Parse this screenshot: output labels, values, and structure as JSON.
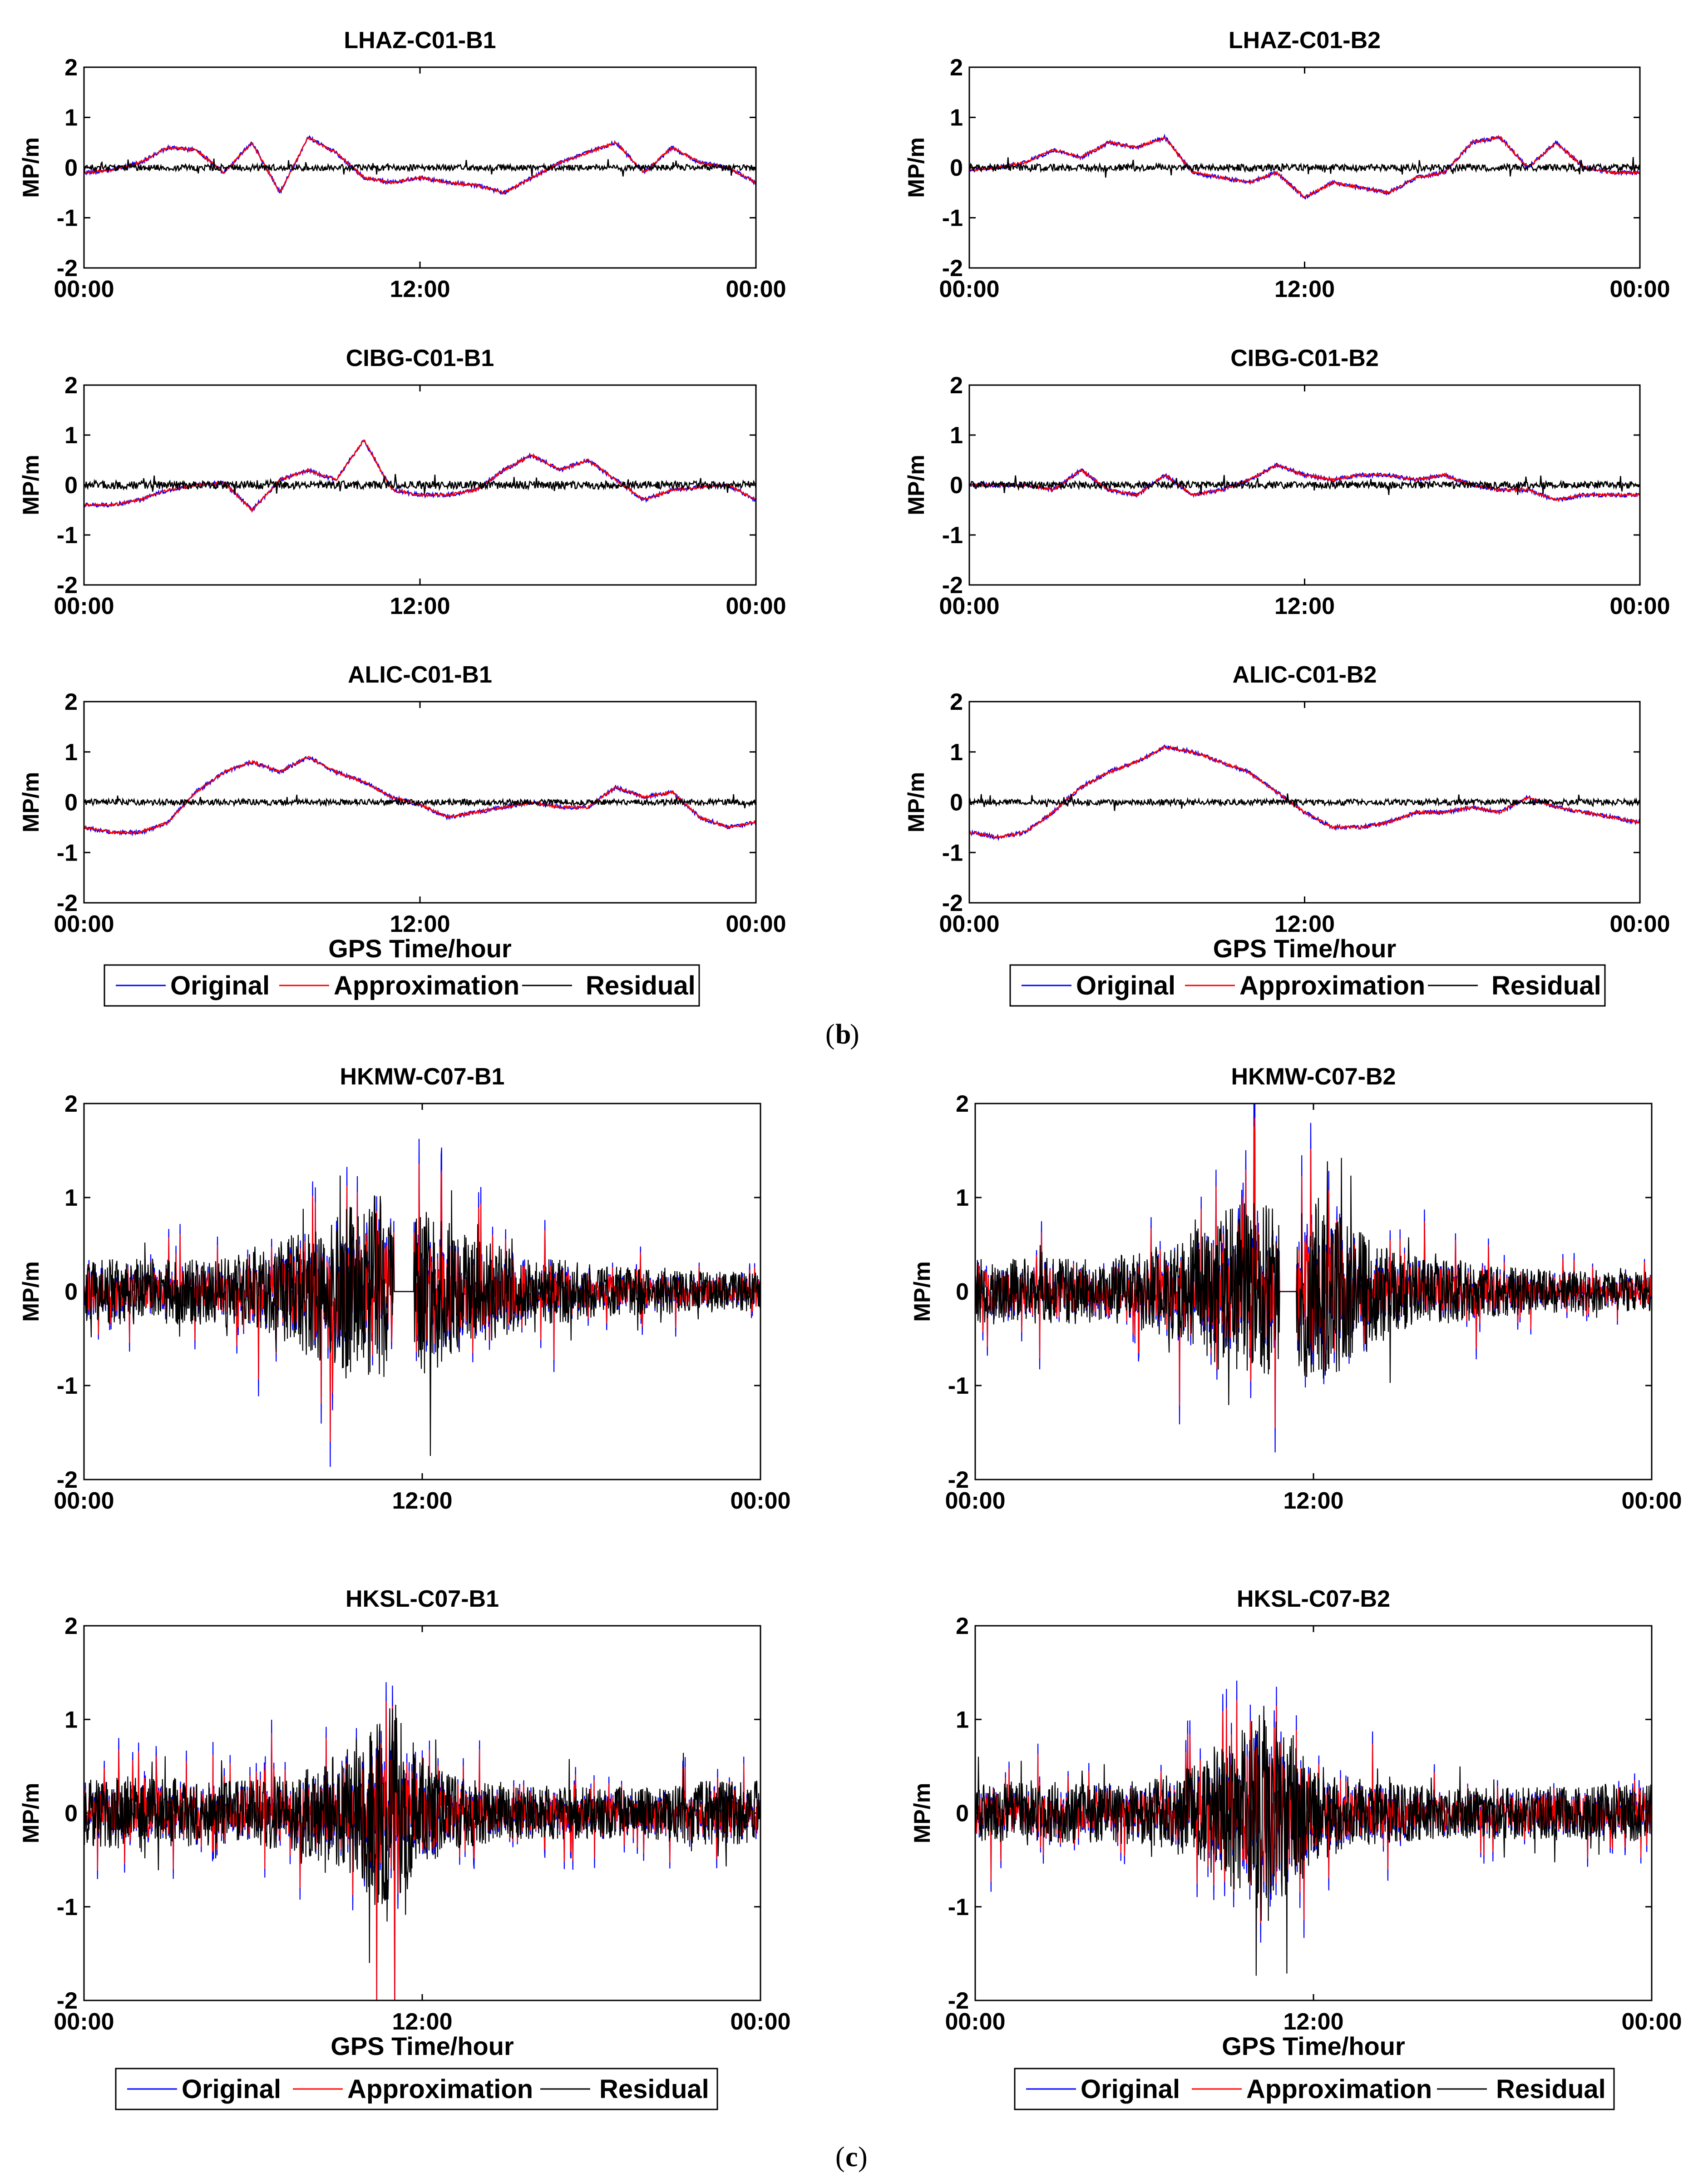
{
  "colors": {
    "original": "#0000ff",
    "approximation": "#ff0000",
    "residual": "#000000"
  },
  "legend": {
    "original": "Original",
    "approximation": "Approximation",
    "residual": "Residual"
  },
  "panel_labels": {
    "b": "b",
    "c": "c"
  },
  "chart_data": [
    {
      "type": "line",
      "title": "LHAZ-C01-B1",
      "ylabel": "MP/m",
      "xlabel": "",
      "ylim": [
        -2,
        2
      ],
      "yticks": [
        "2",
        "1",
        "0",
        "-1",
        "-2"
      ],
      "xticks": [
        "00:00",
        "12:00",
        "00:00"
      ],
      "x_range_hours": [
        0,
        24
      ],
      "noise": "low",
      "residual_amplitude": 0.06,
      "original_series": {
        "name": "Original",
        "x": [
          0,
          1,
          2,
          3,
          4,
          5,
          6,
          7,
          8,
          9,
          10,
          11,
          12,
          13,
          14,
          15,
          16,
          17,
          18,
          19,
          20,
          21,
          22,
          23,
          24
        ],
        "values": [
          -0.1,
          -0.05,
          0.1,
          0.4,
          0.35,
          -0.1,
          0.5,
          -0.5,
          0.6,
          0.3,
          -0.2,
          -0.3,
          -0.2,
          -0.3,
          -0.35,
          -0.5,
          -0.2,
          0.1,
          0.3,
          0.5,
          -0.1,
          0.4,
          0.1,
          0,
          -0.3
        ]
      }
    },
    {
      "type": "line",
      "title": "LHAZ-C01-B2",
      "ylabel": "MP/m",
      "xlabel": "",
      "ylim": [
        -2,
        2
      ],
      "yticks": [
        "2",
        "1",
        "0",
        "-1",
        "-2"
      ],
      "xticks": [
        "00:00",
        "12:00",
        "00:00"
      ],
      "x_range_hours": [
        0,
        24
      ],
      "noise": "low",
      "residual_amplitude": 0.07,
      "original_series": {
        "name": "Original",
        "x": [
          0,
          1,
          2,
          3,
          4,
          5,
          6,
          7,
          8,
          9,
          10,
          11,
          12,
          13,
          14,
          15,
          16,
          17,
          18,
          19,
          20,
          21,
          22,
          23,
          24
        ],
        "values": [
          -0.05,
          0,
          0.1,
          0.35,
          0.2,
          0.5,
          0.4,
          0.6,
          -0.1,
          -0.2,
          -0.3,
          -0.1,
          -0.6,
          -0.3,
          -0.4,
          -0.5,
          -0.2,
          -0.1,
          0.5,
          0.6,
          0,
          0.5,
          0,
          -0.1,
          -0.1
        ]
      }
    },
    {
      "type": "line",
      "title": "CIBG-C01-B1",
      "ylabel": "MP/m",
      "xlabel": "",
      "ylim": [
        -2,
        2
      ],
      "yticks": [
        "2",
        "1",
        "0",
        "-1",
        "-2"
      ],
      "xticks": [
        "00:00",
        "12:00",
        "00:00"
      ],
      "x_range_hours": [
        0,
        24
      ],
      "noise": "low",
      "residual_amplitude": 0.08,
      "original_series": {
        "name": "Original",
        "x": [
          0,
          1,
          2,
          3,
          4,
          5,
          6,
          7,
          8,
          9,
          10,
          11,
          12,
          13,
          14,
          15,
          16,
          17,
          18,
          19,
          20,
          21,
          22,
          23,
          24
        ],
        "values": [
          -0.4,
          -0.4,
          -0.3,
          -0.1,
          0,
          0.05,
          -0.5,
          0.1,
          0.3,
          0.1,
          0.9,
          -0.1,
          -0.2,
          -0.2,
          -0.1,
          0.3,
          0.6,
          0.3,
          0.5,
          0.1,
          -0.3,
          -0.1,
          -0.05,
          0,
          -0.3
        ]
      }
    },
    {
      "type": "line",
      "title": "CIBG-C01-B2",
      "ylabel": "MP/m",
      "xlabel": "",
      "ylim": [
        -2,
        2
      ],
      "yticks": [
        "2",
        "1",
        "0",
        "-1",
        "-2"
      ],
      "xticks": [
        "00:00",
        "12:00",
        "00:00"
      ],
      "x_range_hours": [
        0,
        24
      ],
      "noise": "low",
      "residual_amplitude": 0.07,
      "original_series": {
        "name": "Original",
        "x": [
          0,
          1,
          2,
          3,
          4,
          5,
          6,
          7,
          8,
          9,
          10,
          11,
          12,
          13,
          14,
          15,
          16,
          17,
          18,
          19,
          20,
          21,
          22,
          23,
          24
        ],
        "values": [
          0,
          0,
          0,
          -0.1,
          0.3,
          -0.1,
          -0.2,
          0.2,
          -0.2,
          -0.1,
          0.1,
          0.4,
          0.2,
          0.1,
          0.2,
          0.2,
          0.1,
          0.2,
          0,
          -0.1,
          -0.1,
          -0.3,
          -0.2,
          -0.2,
          -0.2
        ]
      }
    },
    {
      "type": "line",
      "title": "ALIC-C01-B1",
      "ylabel": "MP/m",
      "xlabel": "GPS Time/hour",
      "ylim": [
        -2,
        2
      ],
      "yticks": [
        "2",
        "1",
        "0",
        "-1",
        "-2"
      ],
      "xticks": [
        "00:00",
        "12:00",
        "00:00"
      ],
      "x_range_hours": [
        0,
        24
      ],
      "noise": "low",
      "residual_amplitude": 0.06,
      "original_series": {
        "name": "Original",
        "x": [
          0,
          1,
          2,
          3,
          4,
          5,
          6,
          7,
          8,
          9,
          10,
          11,
          12,
          13,
          14,
          15,
          16,
          17,
          18,
          19,
          20,
          21,
          22,
          23,
          24
        ],
        "values": [
          -0.5,
          -0.6,
          -0.6,
          -0.4,
          0.2,
          0.6,
          0.8,
          0.6,
          0.9,
          0.6,
          0.4,
          0.1,
          -0.05,
          -0.3,
          -0.2,
          -0.1,
          0,
          -0.1,
          -0.1,
          0.3,
          0.1,
          0.2,
          -0.3,
          -0.5,
          -0.4
        ]
      }
    },
    {
      "type": "line",
      "title": "ALIC-C01-B2",
      "ylabel": "MP/m",
      "xlabel": "GPS Time/hour",
      "ylim": [
        -2,
        2
      ],
      "yticks": [
        "2",
        "1",
        "0",
        "-1",
        "-2"
      ],
      "xticks": [
        "00:00",
        "12:00",
        "00:00"
      ],
      "x_range_hours": [
        0,
        24
      ],
      "noise": "low",
      "residual_amplitude": 0.06,
      "original_series": {
        "name": "Original",
        "x": [
          0,
          1,
          2,
          3,
          4,
          5,
          6,
          7,
          8,
          9,
          10,
          11,
          12,
          13,
          14,
          15,
          16,
          17,
          18,
          19,
          20,
          21,
          22,
          23,
          24
        ],
        "values": [
          -0.6,
          -0.7,
          -0.6,
          -0.2,
          0.3,
          0.6,
          0.8,
          1.1,
          1.0,
          0.8,
          0.6,
          0.2,
          -0.2,
          -0.5,
          -0.5,
          -0.4,
          -0.2,
          -0.2,
          -0.1,
          -0.2,
          0.1,
          -0.1,
          -0.2,
          -0.3,
          -0.4
        ]
      }
    },
    {
      "type": "line",
      "title": "HKMW-C07-B1",
      "ylabel": "MP/m",
      "xlabel": "",
      "ylim": [
        -2,
        2
      ],
      "yticks": [
        "2",
        "1",
        "0",
        "-1",
        "-2"
      ],
      "xticks": [
        "00:00",
        "12:00",
        "00:00"
      ],
      "x_range_hours": [
        0,
        24
      ],
      "noise": "high",
      "gap_hours": [
        11.0,
        11.7
      ],
      "noise_envelope": {
        "x": [
          0,
          2,
          4,
          6,
          7,
          8,
          9,
          10,
          10.5,
          11,
          12,
          13,
          14,
          15,
          16,
          17,
          18,
          20,
          22,
          24
        ],
        "values": [
          0.5,
          0.5,
          0.5,
          0.6,
          0.8,
          1.0,
          1.2,
          1.4,
          1.5,
          1.0,
          1.4,
          1.1,
          0.8,
          0.7,
          0.5,
          0.5,
          0.4,
          0.35,
          0.3,
          0.3
        ]
      }
    },
    {
      "type": "line",
      "title": "HKMW-C07-B2",
      "ylabel": "MP/m",
      "xlabel": "",
      "ylim": [
        -2,
        2
      ],
      "yticks": [
        "2",
        "1",
        "0",
        "-1",
        "-2"
      ],
      "xticks": [
        "00:00",
        "12:00",
        "00:00"
      ],
      "x_range_hours": [
        0,
        24
      ],
      "noise": "high",
      "gap_hours": [
        10.8,
        11.4
      ],
      "noise_envelope": {
        "x": [
          0,
          2,
          4,
          6,
          7,
          8,
          9,
          10,
          10.5,
          11,
          12,
          13,
          14,
          15,
          16,
          17,
          18,
          20,
          22,
          24
        ],
        "values": [
          0.5,
          0.5,
          0.5,
          0.6,
          0.8,
          1.0,
          1.3,
          1.4,
          1.3,
          0.9,
          1.5,
          1.2,
          0.8,
          0.6,
          0.5,
          0.5,
          0.4,
          0.35,
          0.3,
          0.3
        ]
      }
    },
    {
      "type": "line",
      "title": "HKSL-C07-B1",
      "ylabel": "MP/m",
      "xlabel": "GPS Time/hour",
      "ylim": [
        -2,
        2
      ],
      "yticks": [
        "2",
        "1",
        "0",
        "-1",
        "-2"
      ],
      "xticks": [
        "00:00",
        "12:00",
        "00:00"
      ],
      "x_range_hours": [
        0,
        24
      ],
      "noise": "high",
      "gap_hours": null,
      "noise_envelope": {
        "x": [
          0,
          2,
          4,
          6,
          7,
          8,
          9,
          10,
          10.5,
          11,
          12,
          13,
          14,
          15,
          16,
          17,
          18,
          20,
          22,
          24
        ],
        "values": [
          0.5,
          0.6,
          0.5,
          0.5,
          0.6,
          0.7,
          0.9,
          1.2,
          1.6,
          1.8,
          0.8,
          0.6,
          0.5,
          0.4,
          0.4,
          0.4,
          0.4,
          0.4,
          0.5,
          0.5
        ]
      }
    },
    {
      "type": "line",
      "title": "HKSL-C07-B2",
      "ylabel": "MP/m",
      "xlabel": "GPS Time/hour",
      "ylim": [
        -2,
        2
      ],
      "yticks": [
        "2",
        "1",
        "0",
        "-1",
        "-2"
      ],
      "xticks": [
        "00:00",
        "12:00",
        "00:00"
      ],
      "x_range_hours": [
        0,
        24
      ],
      "noise": "high",
      "gap_hours": null,
      "noise_envelope": {
        "x": [
          0,
          2,
          4,
          6,
          7,
          8,
          9,
          10,
          10.5,
          11,
          12,
          13,
          14,
          15,
          16,
          17,
          18,
          20,
          22,
          24
        ],
        "values": [
          0.45,
          0.5,
          0.45,
          0.5,
          0.6,
          0.8,
          1.1,
          1.6,
          1.8,
          1.4,
          0.8,
          0.6,
          0.5,
          0.45,
          0.4,
          0.4,
          0.4,
          0.4,
          0.45,
          0.45
        ]
      }
    }
  ]
}
